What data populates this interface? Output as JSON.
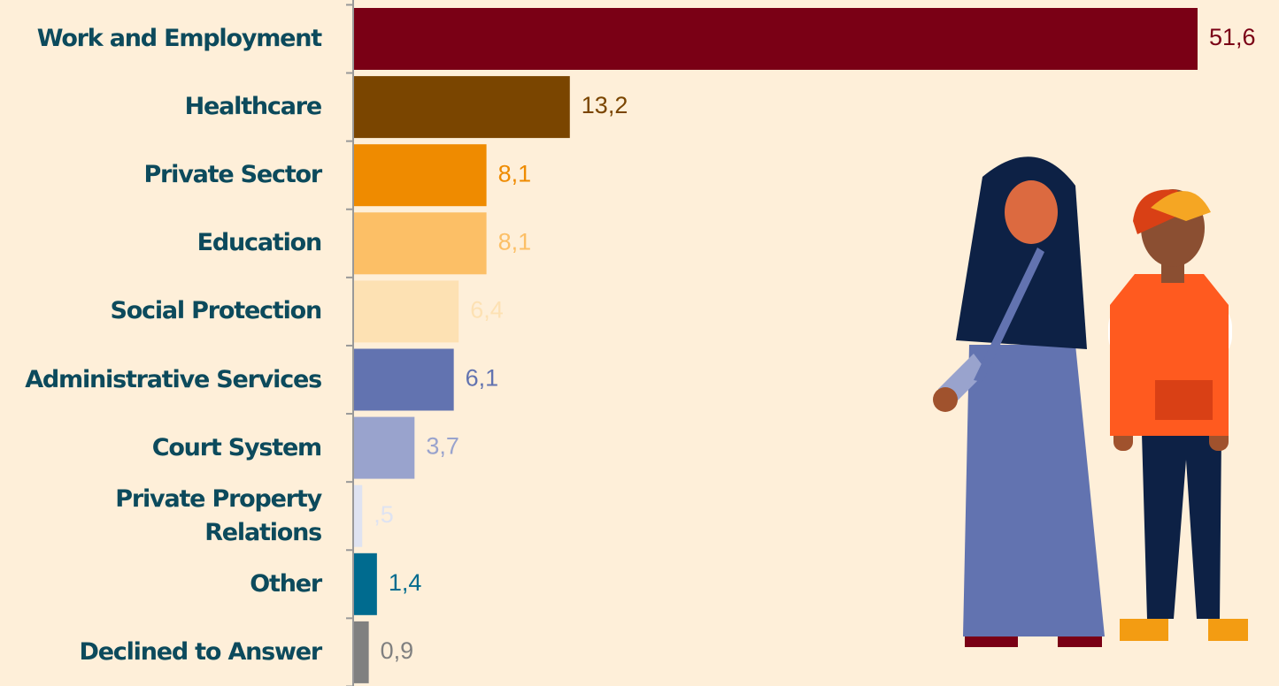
{
  "chart_data": {
    "type": "bar",
    "orientation": "horizontal",
    "categories": [
      "Work and Employment",
      "Healthcare",
      "Private Sector",
      "Education",
      "Social Protection",
      "Administrative Services",
      "Court System",
      "Private Property Relations",
      "Other",
      "Declined to Answer"
    ],
    "values": [
      51.6,
      13.2,
      8.1,
      8.1,
      6.4,
      6.1,
      3.7,
      0.5,
      1.4,
      0.9
    ],
    "value_labels": [
      "51,6",
      "13,2",
      "8,1",
      "8,1",
      "6,4",
      "6,1",
      "3,7",
      ",5",
      "1,4",
      "0,9"
    ],
    "colors": [
      "#7a0015",
      "#7a4500",
      "#ef8b00",
      "#fcbf66",
      "#fde1b3",
      "#6273b0",
      "#99a3cd",
      "#dfe3f1",
      "#006b8f",
      "#808080"
    ]
  }
}
